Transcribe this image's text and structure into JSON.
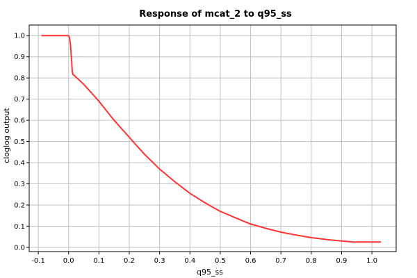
{
  "chart_data": {
    "type": "line",
    "title": "Response of mcat_2 to q95_ss",
    "xlabel": "q95_ss",
    "ylabel": "cloglog output",
    "xlim": [
      -0.13,
      1.08
    ],
    "ylim": [
      -0.02,
      1.05
    ],
    "xticks": [
      -0.1,
      0.0,
      0.1,
      0.2,
      0.3,
      0.4,
      0.5,
      0.6,
      0.7,
      0.8,
      0.9,
      1.0
    ],
    "yticks": [
      0.0,
      0.1,
      0.2,
      0.3,
      0.4,
      0.5,
      0.6,
      0.7,
      0.8,
      0.9,
      1.0
    ],
    "xtick_labels": [
      "-0.1",
      "0.0",
      "0.1",
      "0.2",
      "0.3",
      "0.4",
      "0.5",
      "0.6",
      "0.7",
      "0.8",
      "0.9",
      "1.0"
    ],
    "ytick_labels": [
      "0.0",
      "0.1",
      "0.2",
      "0.3",
      "0.4",
      "0.5",
      "0.6",
      "0.7",
      "0.8",
      "0.9",
      "1.0"
    ],
    "grid": true,
    "line_color": "#ff3333",
    "series": [
      {
        "x": [
          -0.09,
          -0.05,
          -0.02,
          0.0,
          0.003,
          0.006,
          0.009,
          0.012,
          0.015,
          0.02,
          0.05,
          0.1,
          0.15,
          0.2,
          0.25,
          0.3,
          0.35,
          0.4,
          0.45,
          0.5,
          0.55,
          0.6,
          0.65,
          0.7,
          0.75,
          0.8,
          0.85,
          0.9,
          0.94,
          0.98,
          1.03
        ],
        "y": [
          1.0,
          1.0,
          1.0,
          1.0,
          0.99,
          0.96,
          0.9,
          0.83,
          0.815,
          0.81,
          0.77,
          0.69,
          0.6,
          0.52,
          0.44,
          0.37,
          0.31,
          0.255,
          0.21,
          0.17,
          0.14,
          0.11,
          0.09,
          0.072,
          0.058,
          0.046,
          0.037,
          0.03,
          0.025,
          0.025,
          0.025
        ]
      }
    ]
  }
}
